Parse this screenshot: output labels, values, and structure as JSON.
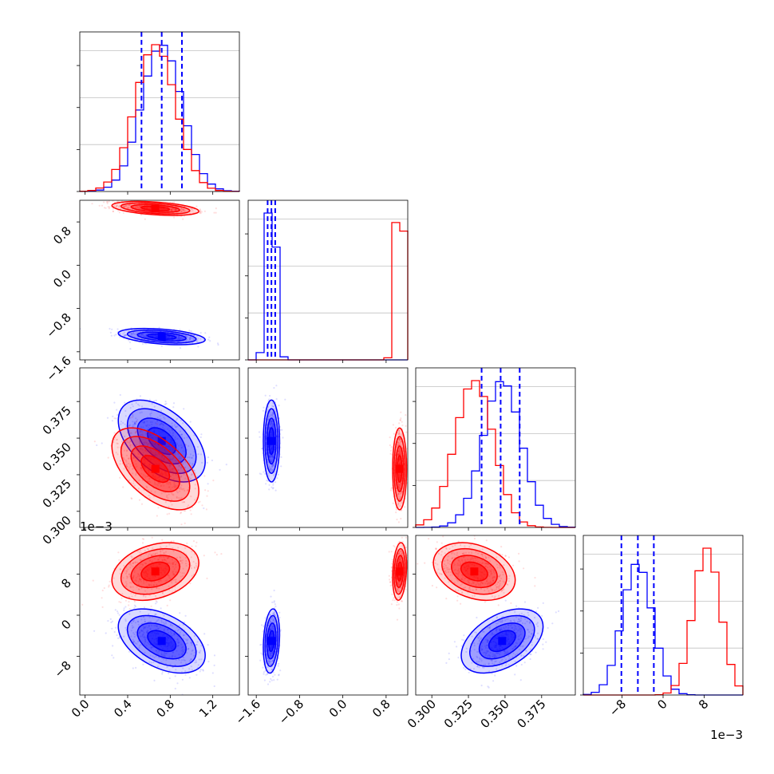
{
  "chart_data": {
    "type": "corner",
    "title": "",
    "grid": true,
    "params": [
      {
        "range": [
          -0.05,
          1.45
        ],
        "ticks": [
          "0.0",
          "0.4",
          "0.8",
          "1.2"
        ],
        "tick_values": [
          0.0,
          0.4,
          0.8,
          1.2
        ]
      },
      {
        "range": [
          -1.75,
          1.2
        ],
        "ticks": [
          "−1.6",
          "−0.8",
          "0.0",
          "0.8"
        ],
        "tick_values": [
          -1.6,
          -0.8,
          0.0,
          0.8
        ]
      },
      {
        "range": [
          0.289,
          0.398
        ],
        "ticks": [
          "0.300",
          "0.325",
          "0.350",
          "0.375"
        ],
        "tick_values": [
          0.3,
          0.325,
          0.35,
          0.375
        ]
      },
      {
        "range": [
          -0.0155,
          0.0155
        ],
        "ticks": [
          "−8",
          "0",
          "8"
        ],
        "tick_values": [
          -0.008,
          0.0,
          0.008
        ],
        "offset_text": "1e−3"
      }
    ],
    "series": [
      {
        "color": "#0000ff",
        "mean": [
          0.72,
          -1.32,
          0.348,
          -0.005
        ],
        "std": [
          0.19,
          0.07,
          0.013,
          0.0029
        ],
        "corr": {
          "0-1": -0.4,
          "0-2": -0.5,
          "0-3": -0.45,
          "1-2": 0.0,
          "1-3": 0.2,
          "2-3": 0.45
        }
      },
      {
        "color": "#ff0000",
        "mean": [
          0.66,
          1.05,
          0.329,
          0.0085
        ],
        "std": [
          0.19,
          0.06,
          0.013,
          0.0026
        ],
        "corr": {
          "0-1": -0.4,
          "0-2": -0.55,
          "0-3": 0.3,
          "1-2": 0.0,
          "1-3": 0.2,
          "2-3": -0.3
        }
      }
    ],
    "quantile_lines": {
      "color": "#0000ff",
      "style": "dashed",
      "values": [
        [
          0.53,
          0.72,
          0.91
        ],
        [
          -1.39,
          -1.32,
          -1.25
        ],
        [
          0.334,
          0.347,
          0.36
        ],
        [
          -0.0081,
          -0.0049,
          -0.0018
        ]
      ]
    }
  }
}
